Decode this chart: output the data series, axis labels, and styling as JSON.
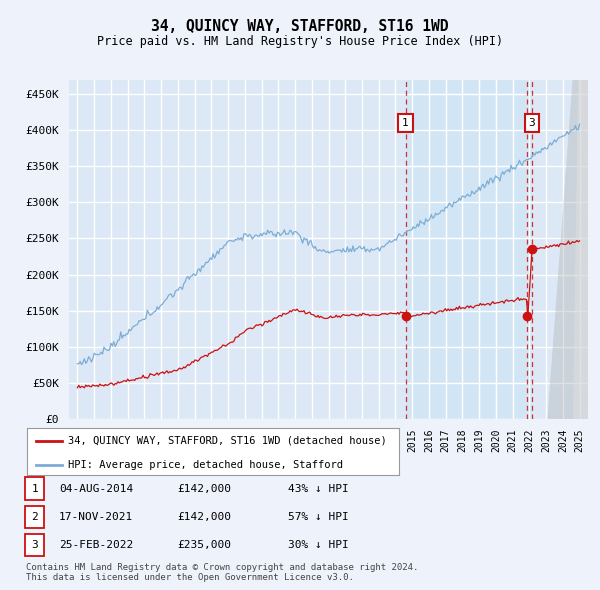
{
  "title": "34, QUINCY WAY, STAFFORD, ST16 1WD",
  "subtitle": "Price paid vs. HM Land Registry's House Price Index (HPI)",
  "ylabel_ticks": [
    "£0",
    "£50K",
    "£100K",
    "£150K",
    "£200K",
    "£250K",
    "£300K",
    "£350K",
    "£400K",
    "£450K"
  ],
  "ytick_values": [
    0,
    50000,
    100000,
    150000,
    200000,
    250000,
    300000,
    350000,
    400000,
    450000
  ],
  "ylim": [
    0,
    470000
  ],
  "xlim_start": 1994.5,
  "xlim_end": 2025.5,
  "background_color": "#eef2fb",
  "plot_bg_color": "#dce8f5",
  "grid_color": "#ffffff",
  "hpi_color": "#7dadd4",
  "price_color": "#cc1111",
  "vline_color": "#cc1111",
  "shade_color": "#ccddf0",
  "transactions": [
    {
      "label": "1",
      "date": 2014.6,
      "price": 142000,
      "show_box": true
    },
    {
      "label": "2",
      "date": 2021.87,
      "price": 142000,
      "show_box": false
    },
    {
      "label": "3",
      "date": 2022.15,
      "price": 235000,
      "show_box": true
    }
  ],
  "legend_house_label": "34, QUINCY WAY, STAFFORD, ST16 1WD (detached house)",
  "legend_hpi_label": "HPI: Average price, detached house, Stafford",
  "table_rows": [
    {
      "num": "1",
      "date": "04-AUG-2014",
      "price": "£142,000",
      "pct": "43% ↓ HPI"
    },
    {
      "num": "2",
      "date": "17-NOV-2021",
      "price": "£142,000",
      "pct": "57% ↓ HPI"
    },
    {
      "num": "3",
      "date": "25-FEB-2022",
      "price": "£235,000",
      "pct": "30% ↓ HPI"
    }
  ],
  "footnote": "Contains HM Land Registry data © Crown copyright and database right 2024.\nThis data is licensed under the Open Government Licence v3.0."
}
